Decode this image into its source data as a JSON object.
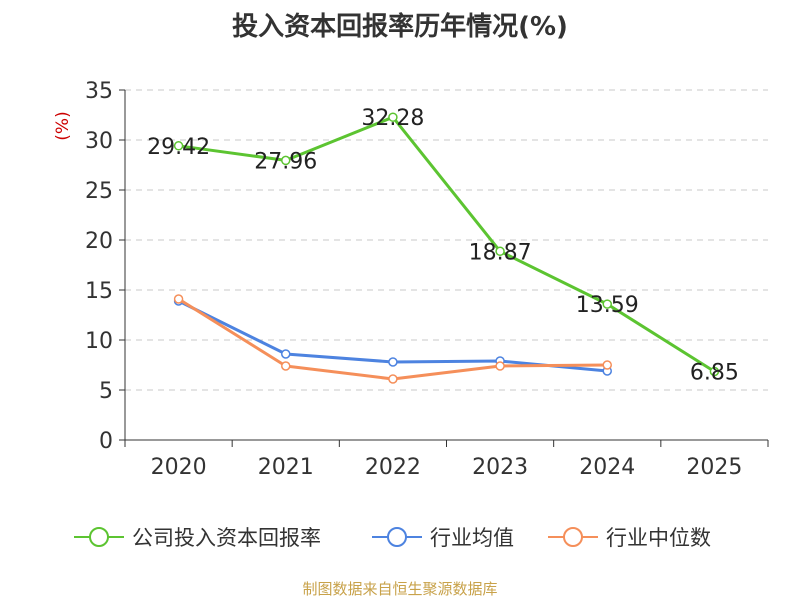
{
  "chart_data": {
    "type": "line",
    "title": "投入资本回报率历年情况(%)",
    "ylabel": "(%)",
    "xlabel": "",
    "categories": [
      "2020",
      "2021",
      "2022",
      "2023",
      "2024",
      "2025"
    ],
    "ylim": [
      0,
      35
    ],
    "yticks": [
      0,
      5,
      10,
      15,
      20,
      25,
      30,
      35
    ],
    "grid": true,
    "legend_position": "bottom",
    "series": [
      {
        "name": "公司投入资本回报率",
        "color": "#5cc431",
        "values": [
          29.42,
          27.96,
          32.28,
          18.87,
          13.59,
          6.85
        ],
        "labels": [
          "29.42",
          "27.96",
          "32.28",
          "18.87",
          "13.59",
          "6.85"
        ]
      },
      {
        "name": "行业均值",
        "color": "#4d83e0",
        "values": [
          13.9,
          8.6,
          7.8,
          7.9,
          6.9,
          null
        ]
      },
      {
        "name": "行业中位数",
        "color": "#f58f5a",
        "values": [
          14.1,
          7.4,
          6.1,
          7.4,
          7.5,
          null
        ]
      }
    ]
  },
  "footer": "制图数据来自恒生聚源数据库"
}
